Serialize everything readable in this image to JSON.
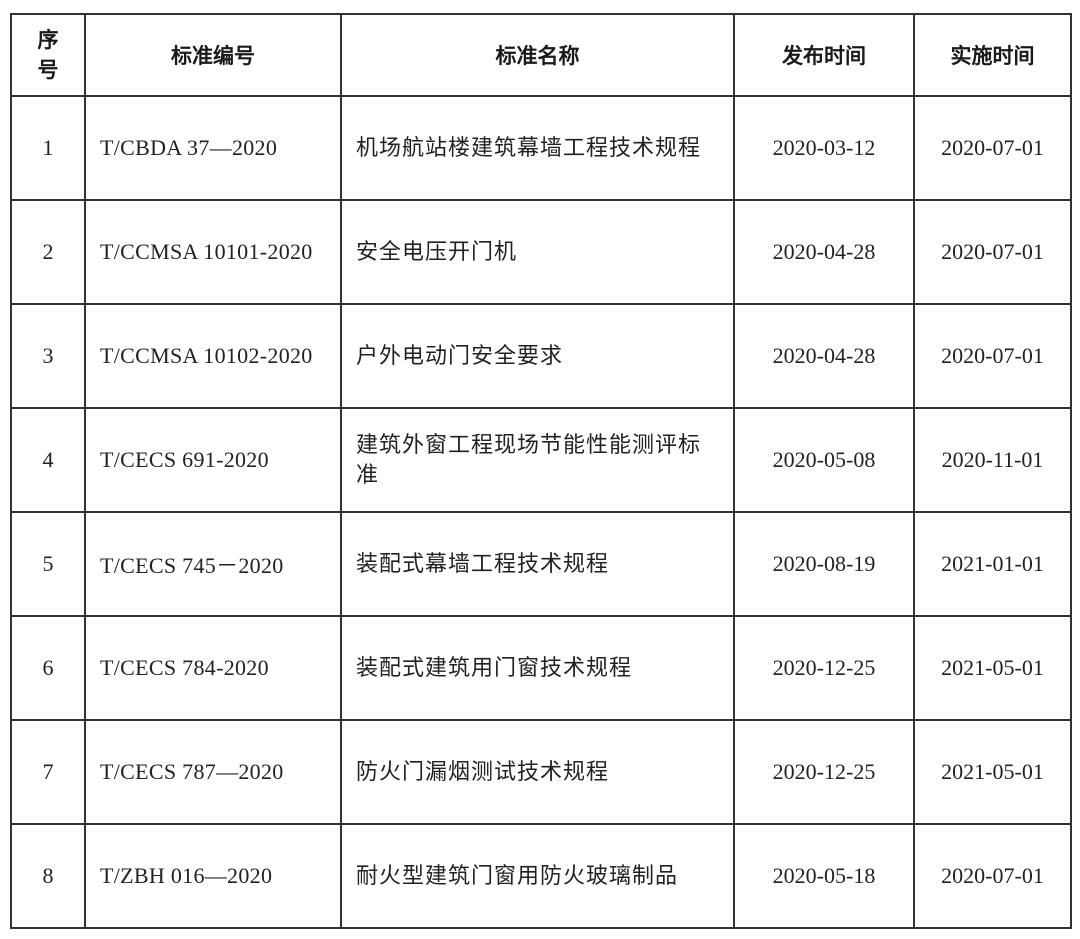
{
  "table": {
    "headers": [
      "序\n号",
      "标准编号",
      "标准名称",
      "发布时间",
      "实施时间"
    ],
    "rows": [
      {
        "no": "1",
        "code": "T/CBDA 37—2020",
        "name": "机场航站楼建筑幕墙工程技术规程",
        "published": "2020-03-12",
        "effective": "2020-07-01"
      },
      {
        "no": "2",
        "code": "T/CCMSA 10101-2020",
        "name": "安全电压开门机",
        "published": "2020-04-28",
        "effective": "2020-07-01"
      },
      {
        "no": "3",
        "code": "T/CCMSA 10102-2020",
        "name": "户外电动门安全要求",
        "published": "2020-04-28",
        "effective": "2020-07-01"
      },
      {
        "no": "4",
        "code": "T/CECS 691-2020",
        "name": "建筑外窗工程现场节能性能测评标准",
        "published": "2020-05-08",
        "effective": "2020-11-01"
      },
      {
        "no": "5",
        "code": "T/CECS 745－2020",
        "name": "装配式幕墙工程技术规程",
        "published": "2020-08-19",
        "effective": "2021-01-01"
      },
      {
        "no": "6",
        "code": "T/CECS 784-2020",
        "name": "装配式建筑用门窗技术规程",
        "published": "2020-12-25",
        "effective": "2021-05-01"
      },
      {
        "no": "7",
        "code": "T/CECS 787—2020",
        "name": "防火门漏烟测试技术规程",
        "published": "2020-12-25",
        "effective": "2021-05-01"
      },
      {
        "no": "8",
        "code": "T/ZBH 016—2020",
        "name": "耐火型建筑门窗用防火玻璃制品",
        "published": "2020-05-18",
        "effective": "2020-07-01"
      }
    ]
  }
}
